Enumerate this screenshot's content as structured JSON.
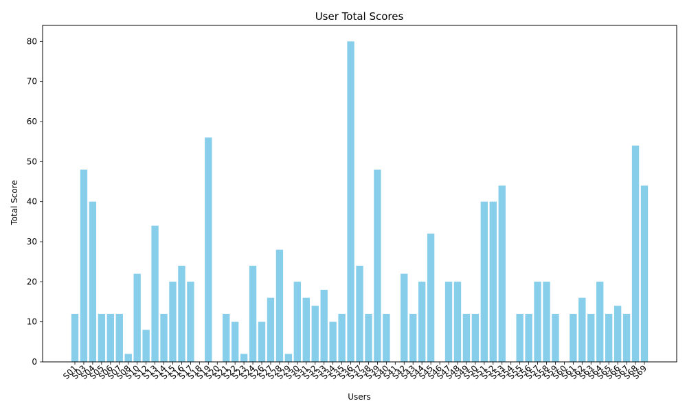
{
  "chart_data": {
    "type": "bar",
    "title": "User Total Scores",
    "xlabel": "Users",
    "ylabel": "Total Score",
    "ylim": [
      0,
      84
    ],
    "yticks": [
      0,
      10,
      20,
      30,
      40,
      50,
      60,
      70,
      80
    ],
    "grid": false,
    "bar_color": "#87ceeb",
    "categories": [
      "S01",
      "S03",
      "S04",
      "S05",
      "S06",
      "S07",
      "S08",
      "S10",
      "S12",
      "S13",
      "S14",
      "S15",
      "S16",
      "S17",
      "S18",
      "S19",
      "S20",
      "S21",
      "S22",
      "S23",
      "S24",
      "S26",
      "S27",
      "S28",
      "S29",
      "S30",
      "S31",
      "S32",
      "S33",
      "S34",
      "S35",
      "S36",
      "S37",
      "S38",
      "S39",
      "S40",
      "S41",
      "S42",
      "S43",
      "S44",
      "S45",
      "S46",
      "S47",
      "S48",
      "S49",
      "S50",
      "S51",
      "S52",
      "S53",
      "S54",
      "S55",
      "S56",
      "S57",
      "S58",
      "S59",
      "S60",
      "S61",
      "S62",
      "S63",
      "S64",
      "S65",
      "S66",
      "S67",
      "S68",
      "S69"
    ],
    "values": [
      12,
      48,
      40,
      12,
      12,
      12,
      2,
      22,
      8,
      34,
      12,
      20,
      24,
      20,
      0,
      56,
      0,
      12,
      10,
      2,
      24,
      10,
      16,
      28,
      2,
      20,
      16,
      14,
      18,
      10,
      12,
      80,
      24,
      12,
      48,
      12,
      0,
      22,
      12,
      20,
      32,
      0,
      20,
      20,
      12,
      12,
      40,
      40,
      44,
      0,
      12,
      12,
      20,
      20,
      12,
      0,
      12,
      16,
      12,
      20,
      12,
      14,
      12,
      54,
      44
    ]
  }
}
